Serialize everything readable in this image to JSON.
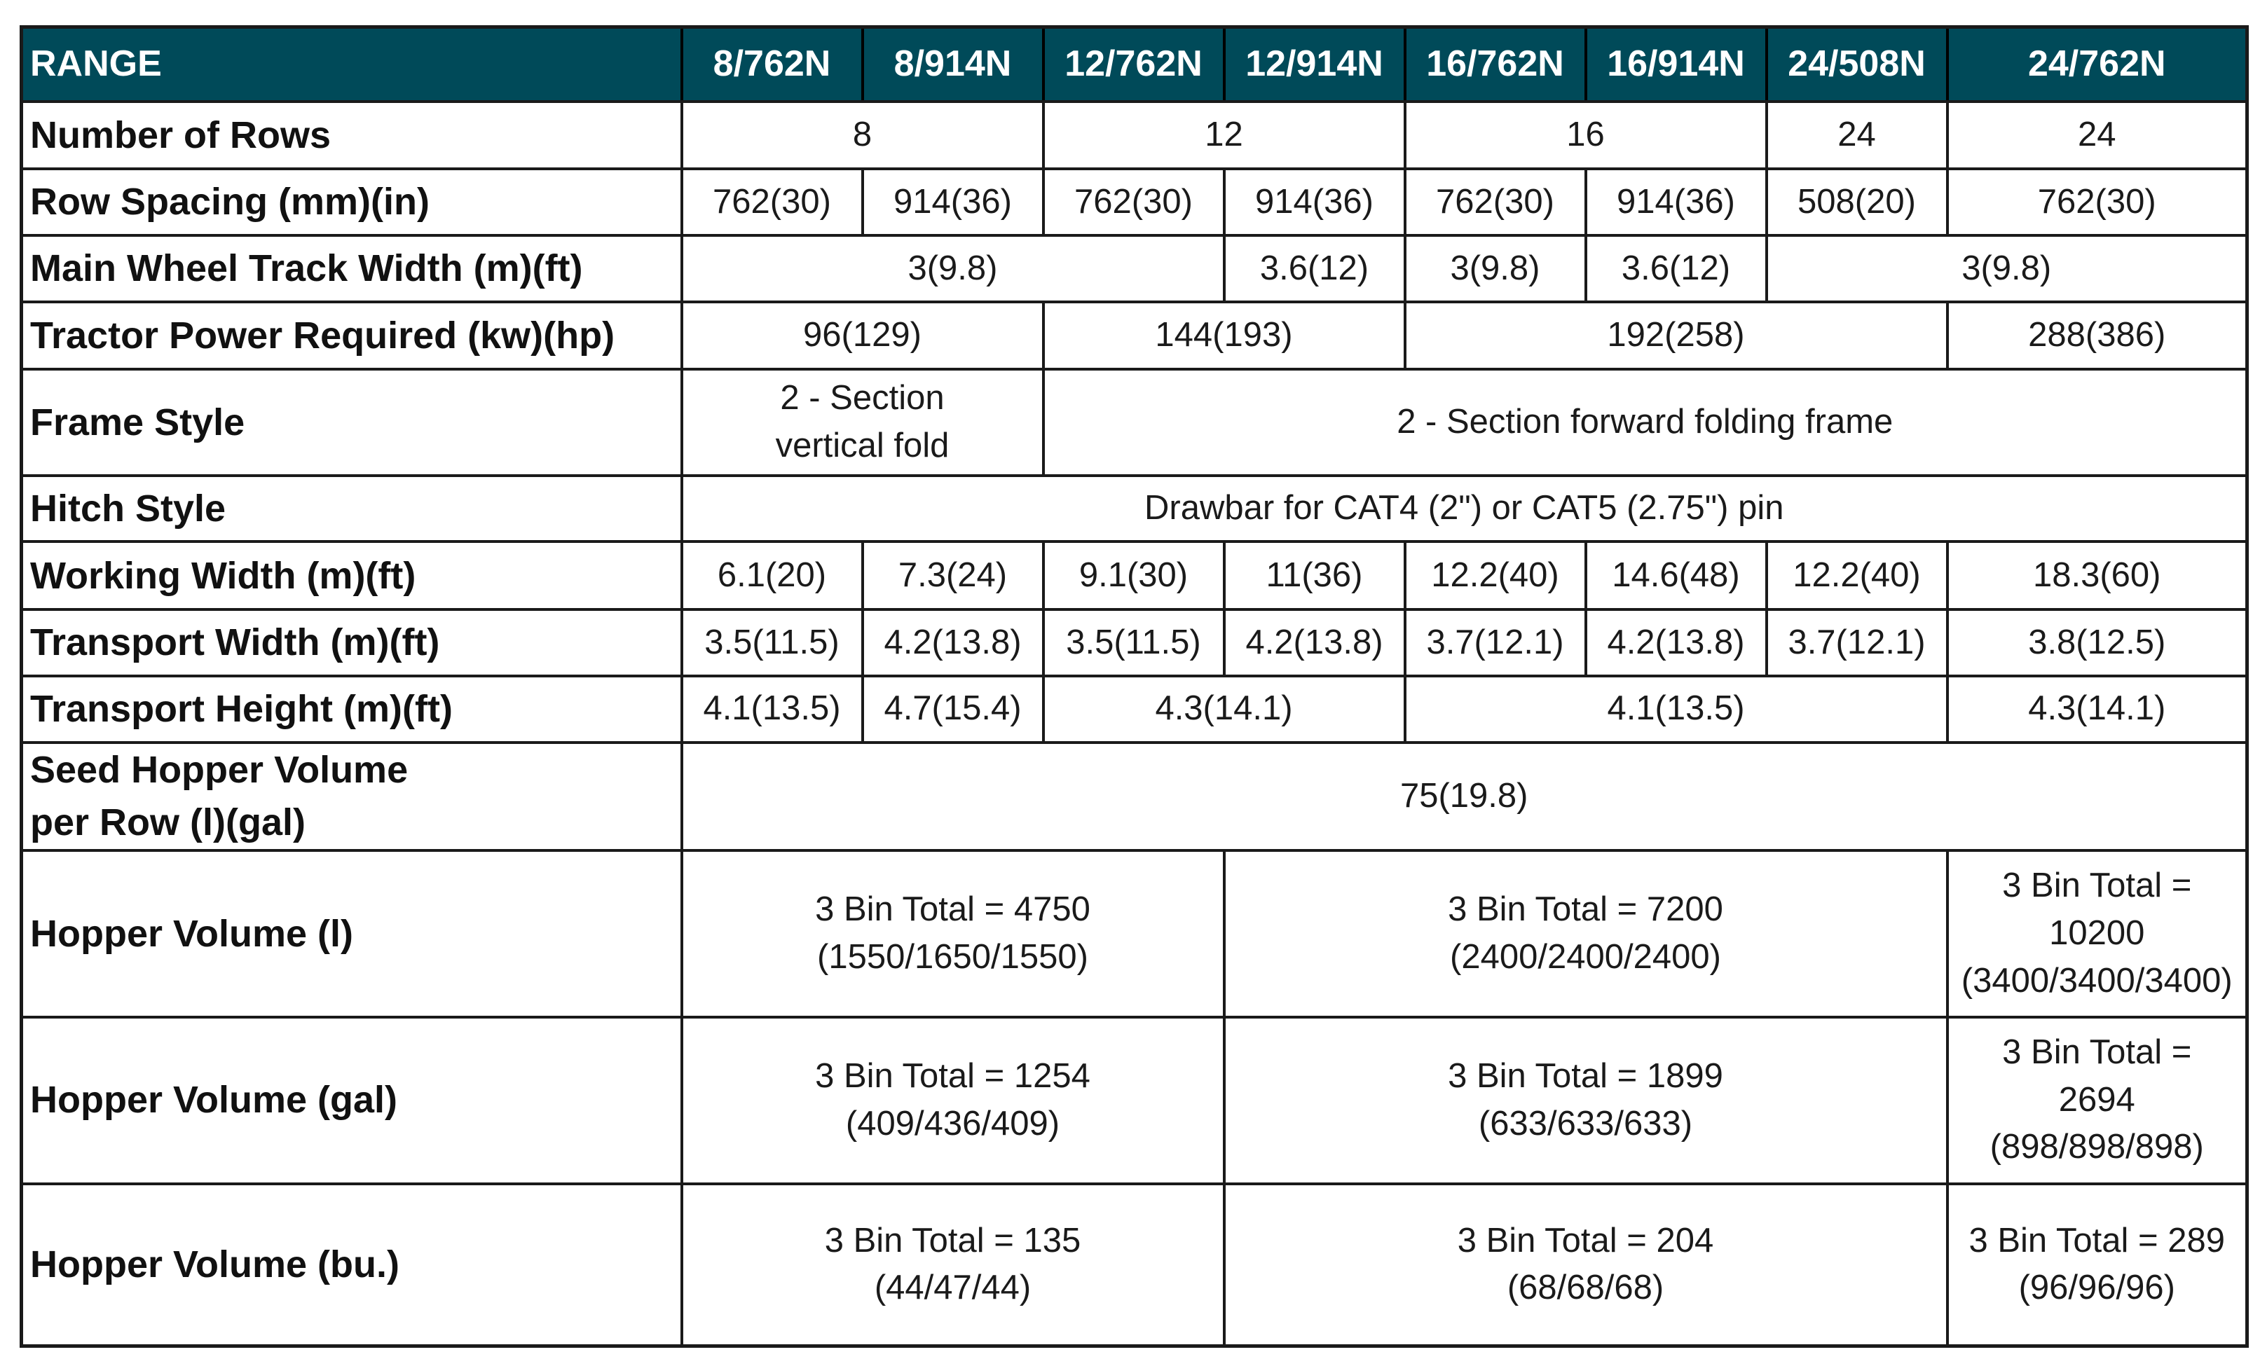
{
  "table": {
    "header": {
      "range_label": "RANGE",
      "models": [
        "8/762N",
        "8/914N",
        "12/762N",
        "12/914N",
        "16/762N",
        "16/914N",
        "24/508N",
        "24/762N"
      ]
    },
    "rows": {
      "number_of_rows": {
        "label": "Number of Rows",
        "cells": [
          "8",
          "12",
          "16",
          "24",
          "24"
        ]
      },
      "row_spacing": {
        "label": "Row Spacing (mm)(in)",
        "cells": [
          "762(30)",
          "914(36)",
          "762(30)",
          "914(36)",
          "762(30)",
          "914(36)",
          "508(20)",
          "762(30)"
        ]
      },
      "main_wheel_track_width": {
        "label": "Main Wheel Track Width (m)(ft)",
        "cells": [
          "3(9.8)",
          "3.6(12)",
          "3(9.8)",
          "3.6(12)",
          "3(9.8)"
        ]
      },
      "tractor_power_required": {
        "label": "Tractor Power Required (kw)(hp)",
        "cells": [
          "96(129)",
          "144(193)",
          "192(258)",
          "288(386)"
        ]
      },
      "frame_style": {
        "label": "Frame Style",
        "cells": [
          [
            "2 - Section",
            "vertical fold"
          ],
          "2 - Section forward folding frame"
        ]
      },
      "hitch_style": {
        "label": "Hitch Style",
        "cells": [
          "Drawbar for CAT4 (2\") or CAT5 (2.75\") pin"
        ]
      },
      "working_width": {
        "label": "Working Width (m)(ft)",
        "cells": [
          "6.1(20)",
          "7.3(24)",
          "9.1(30)",
          "11(36)",
          "12.2(40)",
          "14.6(48)",
          "12.2(40)",
          "18.3(60)"
        ]
      },
      "transport_width": {
        "label": "Transport Width (m)(ft)",
        "cells": [
          "3.5(11.5)",
          "4.2(13.8)",
          "3.5(11.5)",
          "4.2(13.8)",
          "3.7(12.1)",
          "4.2(13.8)",
          "3.7(12.1)",
          "3.8(12.5)"
        ]
      },
      "transport_height": {
        "label": "Transport Height (m)(ft)",
        "cells": [
          "4.1(13.5)",
          "4.7(15.4)",
          "4.3(14.1)",
          "4.1(13.5)",
          "4.3(14.1)"
        ]
      },
      "seed_hopper_volume_per_row": {
        "label": [
          "Seed Hopper Volume",
          "per Row (l)(gal)"
        ],
        "cells": [
          "75(19.8)"
        ]
      },
      "hopper_volume_l": {
        "label": "Hopper Volume (l)",
        "cells": [
          [
            "3 Bin Total = 4750",
            "(1550/1650/1550)"
          ],
          [
            "3 Bin Total = 7200",
            "(2400/2400/2400)"
          ],
          [
            "3 Bin Total =",
            "10200",
            "(3400/3400/3400)"
          ]
        ]
      },
      "hopper_volume_gal": {
        "label": "Hopper Volume (gal)",
        "cells": [
          [
            "3 Bin Total = 1254",
            "(409/436/409)"
          ],
          [
            "3 Bin Total = 1899",
            "(633/633/633)"
          ],
          [
            "3 Bin Total =",
            "2694",
            "(898/898/898)"
          ]
        ]
      },
      "hopper_volume_bu": {
        "label": "Hopper Volume (bu.)",
        "cells": [
          [
            "3 Bin Total = 135",
            "(44/47/44)"
          ],
          [
            "3 Bin Total = 204",
            "(68/68/68)"
          ],
          [
            "3 Bin Total = 289",
            "(96/96/96)"
          ]
        ]
      }
    }
  },
  "colors": {
    "header_background": "#004a59",
    "header_text": "#ffffff",
    "border": "#1a1a1a",
    "body_text": "#1a1a1a"
  }
}
